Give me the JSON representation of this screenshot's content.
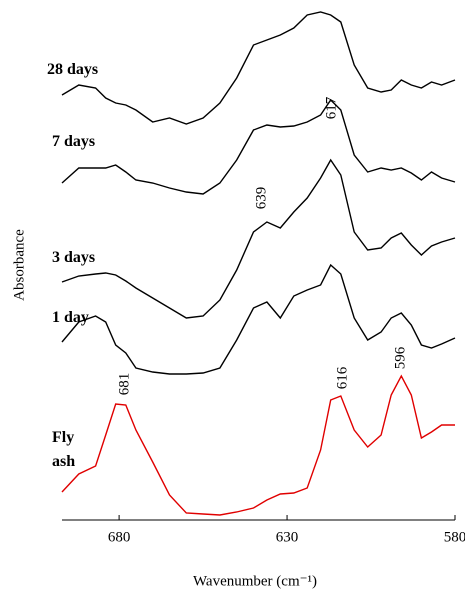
{
  "chart_data": {
    "type": "line",
    "xlabel": "Wavenumber  (cm⁻¹)",
    "ylabel": "Absorbance",
    "x": [
      697,
      692,
      687,
      684,
      681,
      678,
      675,
      670,
      665,
      660,
      655,
      650,
      645,
      640,
      636,
      632,
      628,
      624,
      620,
      617,
      614,
      610,
      606,
      602,
      599,
      596,
      593,
      590,
      587,
      584,
      580
    ],
    "xlim": [
      697,
      580
    ],
    "xticks": [
      680,
      630,
      580
    ],
    "ylim": [
      0,
      515
    ],
    "series": [
      {
        "name": "Fly ash",
        "color": "#e00000",
        "values": [
          28,
          46,
          54,
          85,
          116,
          115,
          90,
          58,
          25,
          7,
          6,
          5,
          8,
          12,
          20,
          26,
          27,
          32,
          70,
          120,
          124,
          90,
          73,
          85,
          125,
          144,
          125,
          82,
          88,
          95,
          95
        ]
      },
      {
        "name": "1 day",
        "color": "#000000",
        "values": [
          178,
          198,
          204,
          198,
          175,
          167,
          152,
          148,
          146,
          146,
          147,
          152,
          180,
          212,
          218,
          202,
          224,
          230,
          235,
          255,
          246,
          202,
          180,
          188,
          202,
          207,
          195,
          175,
          172,
          176,
          182
        ]
      },
      {
        "name": "3 days",
        "color": "#000000",
        "values": [
          238,
          244,
          246,
          247,
          245,
          239,
          232,
          222,
          212,
          202,
          204,
          220,
          250,
          288,
          298,
          292,
          308,
          322,
          342,
          360,
          345,
          288,
          270,
          272,
          282,
          287,
          275,
          265,
          274,
          278,
          282
        ]
      },
      {
        "name": "7 days",
        "color": "#000000",
        "values": [
          337,
          352,
          352,
          352,
          355,
          348,
          340,
          337,
          332,
          328,
          326,
          337,
          360,
          390,
          395,
          393,
          394,
          398,
          405,
          420,
          410,
          365,
          348,
          352,
          350,
          352,
          347,
          340,
          348,
          342,
          338
        ]
      },
      {
        "name": "28 days",
        "color": "#000000",
        "values": [
          425,
          435,
          432,
          422,
          417,
          415,
          410,
          398,
          402,
          396,
          402,
          417,
          442,
          475,
          480,
          485,
          492,
          505,
          508,
          505,
          498,
          455,
          432,
          428,
          430,
          440,
          435,
          432,
          438,
          435,
          440
        ]
      }
    ],
    "annotations": [
      "681",
      "616",
      "596",
      "639",
      "617"
    ]
  }
}
